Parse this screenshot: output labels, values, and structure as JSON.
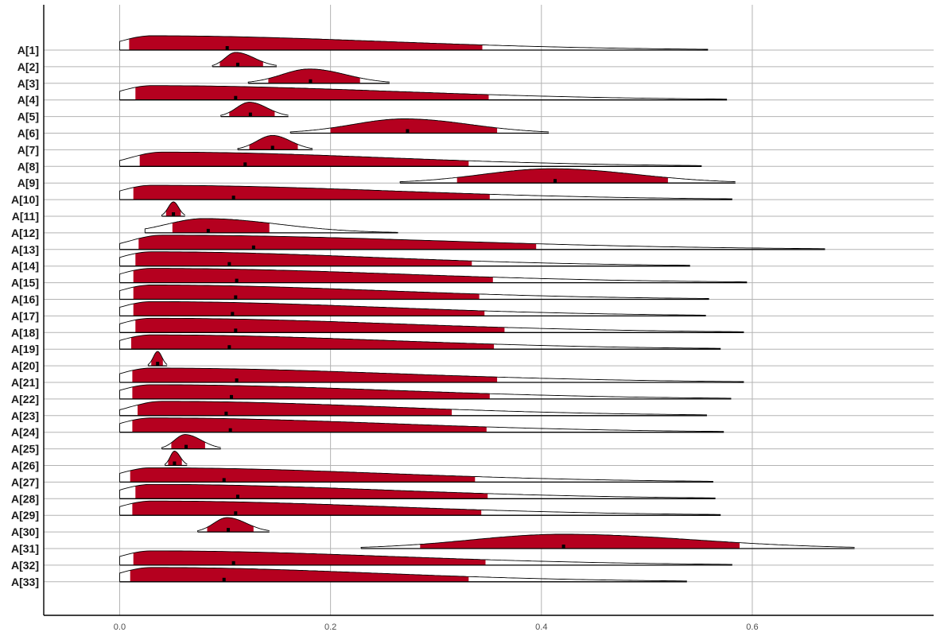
{
  "chart_data": {
    "type": "ridgeline",
    "title": "",
    "xlabel": "",
    "ylabel": "",
    "xlim": [
      -0.072,
      0.772
    ],
    "xticks": [
      0.0,
      0.2,
      0.4,
      0.6
    ],
    "xtick_labels": [
      "0.0",
      "0.2",
      "0.4",
      "0.6"
    ],
    "grid": true,
    "legend": "none",
    "colors": {
      "interval_fill": "#b5001f",
      "outline": "#000000",
      "median_mark": "#000000",
      "grid": "#b3b3b3"
    },
    "series": [
      {
        "name": "A[1]",
        "min": 0.0,
        "ci_low": 0.009,
        "median": 0.102,
        "ci_high": 0.344,
        "max": 0.558,
        "mode": 0.03,
        "shape": "skew"
      },
      {
        "name": "A[2]",
        "min": 0.088,
        "ci_low": 0.095,
        "median": 0.112,
        "ci_high": 0.136,
        "max": 0.149,
        "mode": 0.11,
        "shape": "sym"
      },
      {
        "name": "A[3]",
        "min": 0.122,
        "ci_low": 0.141,
        "median": 0.181,
        "ci_high": 0.228,
        "max": 0.256,
        "mode": 0.18,
        "shape": "sym"
      },
      {
        "name": "A[4]",
        "min": 0.0,
        "ci_low": 0.015,
        "median": 0.11,
        "ci_high": 0.35,
        "max": 0.576,
        "mode": 0.03,
        "shape": "skew"
      },
      {
        "name": "A[5]",
        "min": 0.096,
        "ci_low": 0.104,
        "median": 0.124,
        "ci_high": 0.147,
        "max": 0.16,
        "mode": 0.123,
        "shape": "sym"
      },
      {
        "name": "A[6]",
        "min": 0.162,
        "ci_low": 0.2,
        "median": 0.273,
        "ci_high": 0.358,
        "max": 0.407,
        "mode": 0.27,
        "shape": "sym"
      },
      {
        "name": "A[7]",
        "min": 0.112,
        "ci_low": 0.123,
        "median": 0.145,
        "ci_high": 0.169,
        "max": 0.183,
        "mode": 0.145,
        "shape": "sym"
      },
      {
        "name": "A[8]",
        "min": 0.0,
        "ci_low": 0.019,
        "median": 0.119,
        "ci_high": 0.331,
        "max": 0.552,
        "mode": 0.04,
        "shape": "skew"
      },
      {
        "name": "A[9]",
        "min": 0.266,
        "ci_low": 0.32,
        "median": 0.413,
        "ci_high": 0.52,
        "max": 0.584,
        "mode": 0.41,
        "shape": "sym"
      },
      {
        "name": "A[10]",
        "min": 0.0,
        "ci_low": 0.013,
        "median": 0.108,
        "ci_high": 0.351,
        "max": 0.581,
        "mode": 0.03,
        "shape": "skew"
      },
      {
        "name": "A[11]",
        "min": 0.04,
        "ci_low": 0.044,
        "median": 0.051,
        "ci_high": 0.058,
        "max": 0.062,
        "mode": 0.051,
        "shape": "sym"
      },
      {
        "name": "A[12]",
        "min": 0.024,
        "ci_low": 0.05,
        "median": 0.084,
        "ci_high": 0.142,
        "max": 0.264,
        "mode": 0.08,
        "shape": "rskew"
      },
      {
        "name": "A[13]",
        "min": 0.0,
        "ci_low": 0.018,
        "median": 0.127,
        "ci_high": 0.395,
        "max": 0.669,
        "mode": 0.04,
        "shape": "skew"
      },
      {
        "name": "A[14]",
        "min": 0.0,
        "ci_low": 0.015,
        "median": 0.104,
        "ci_high": 0.334,
        "max": 0.541,
        "mode": 0.03,
        "shape": "skew"
      },
      {
        "name": "A[15]",
        "min": 0.0,
        "ci_low": 0.013,
        "median": 0.111,
        "ci_high": 0.354,
        "max": 0.595,
        "mode": 0.03,
        "shape": "skew"
      },
      {
        "name": "A[16]",
        "min": 0.0,
        "ci_low": 0.013,
        "median": 0.11,
        "ci_high": 0.341,
        "max": 0.559,
        "mode": 0.03,
        "shape": "skew"
      },
      {
        "name": "A[17]",
        "min": 0.0,
        "ci_low": 0.013,
        "median": 0.107,
        "ci_high": 0.346,
        "max": 0.556,
        "mode": 0.03,
        "shape": "skew"
      },
      {
        "name": "A[18]",
        "min": 0.0,
        "ci_low": 0.015,
        "median": 0.11,
        "ci_high": 0.365,
        "max": 0.592,
        "mode": 0.03,
        "shape": "skew"
      },
      {
        "name": "A[19]",
        "min": 0.0,
        "ci_low": 0.011,
        "median": 0.104,
        "ci_high": 0.355,
        "max": 0.57,
        "mode": 0.03,
        "shape": "skew"
      },
      {
        "name": "A[20]",
        "min": 0.027,
        "ci_low": 0.03,
        "median": 0.036,
        "ci_high": 0.041,
        "max": 0.045,
        "mode": 0.036,
        "shape": "sym"
      },
      {
        "name": "A[21]",
        "min": 0.0,
        "ci_low": 0.012,
        "median": 0.111,
        "ci_high": 0.358,
        "max": 0.592,
        "mode": 0.03,
        "shape": "skew"
      },
      {
        "name": "A[22]",
        "min": 0.0,
        "ci_low": 0.012,
        "median": 0.106,
        "ci_high": 0.351,
        "max": 0.58,
        "mode": 0.03,
        "shape": "skew"
      },
      {
        "name": "A[23]",
        "min": 0.0,
        "ci_low": 0.017,
        "median": 0.101,
        "ci_high": 0.315,
        "max": 0.557,
        "mode": 0.04,
        "shape": "skew"
      },
      {
        "name": "A[24]",
        "min": 0.0,
        "ci_low": 0.012,
        "median": 0.105,
        "ci_high": 0.348,
        "max": 0.573,
        "mode": 0.03,
        "shape": "skew"
      },
      {
        "name": "A[25]",
        "min": 0.04,
        "ci_low": 0.049,
        "median": 0.063,
        "ci_high": 0.081,
        "max": 0.096,
        "mode": 0.062,
        "shape": "sym"
      },
      {
        "name": "A[26]",
        "min": 0.043,
        "ci_low": 0.046,
        "median": 0.052,
        "ci_high": 0.059,
        "max": 0.064,
        "mode": 0.052,
        "shape": "sym"
      },
      {
        "name": "A[27]",
        "min": 0.0,
        "ci_low": 0.01,
        "median": 0.099,
        "ci_high": 0.337,
        "max": 0.563,
        "mode": 0.03,
        "shape": "skew"
      },
      {
        "name": "A[28]",
        "min": 0.0,
        "ci_low": 0.015,
        "median": 0.112,
        "ci_high": 0.349,
        "max": 0.565,
        "mode": 0.03,
        "shape": "skew"
      },
      {
        "name": "A[29]",
        "min": 0.0,
        "ci_low": 0.012,
        "median": 0.11,
        "ci_high": 0.343,
        "max": 0.57,
        "mode": 0.03,
        "shape": "skew"
      },
      {
        "name": "A[30]",
        "min": 0.074,
        "ci_low": 0.083,
        "median": 0.103,
        "ci_high": 0.127,
        "max": 0.142,
        "mode": 0.102,
        "shape": "sym"
      },
      {
        "name": "A[31]",
        "min": 0.229,
        "ci_low": 0.285,
        "median": 0.421,
        "ci_high": 0.588,
        "max": 0.697,
        "mode": 0.42,
        "shape": "sym"
      },
      {
        "name": "A[32]",
        "min": 0.0,
        "ci_low": 0.013,
        "median": 0.108,
        "ci_high": 0.347,
        "max": 0.581,
        "mode": 0.03,
        "shape": "skew"
      },
      {
        "name": "A[33]",
        "min": 0.0,
        "ci_low": 0.01,
        "median": 0.099,
        "ci_high": 0.331,
        "max": 0.538,
        "mode": 0.03,
        "shape": "skew"
      }
    ]
  }
}
